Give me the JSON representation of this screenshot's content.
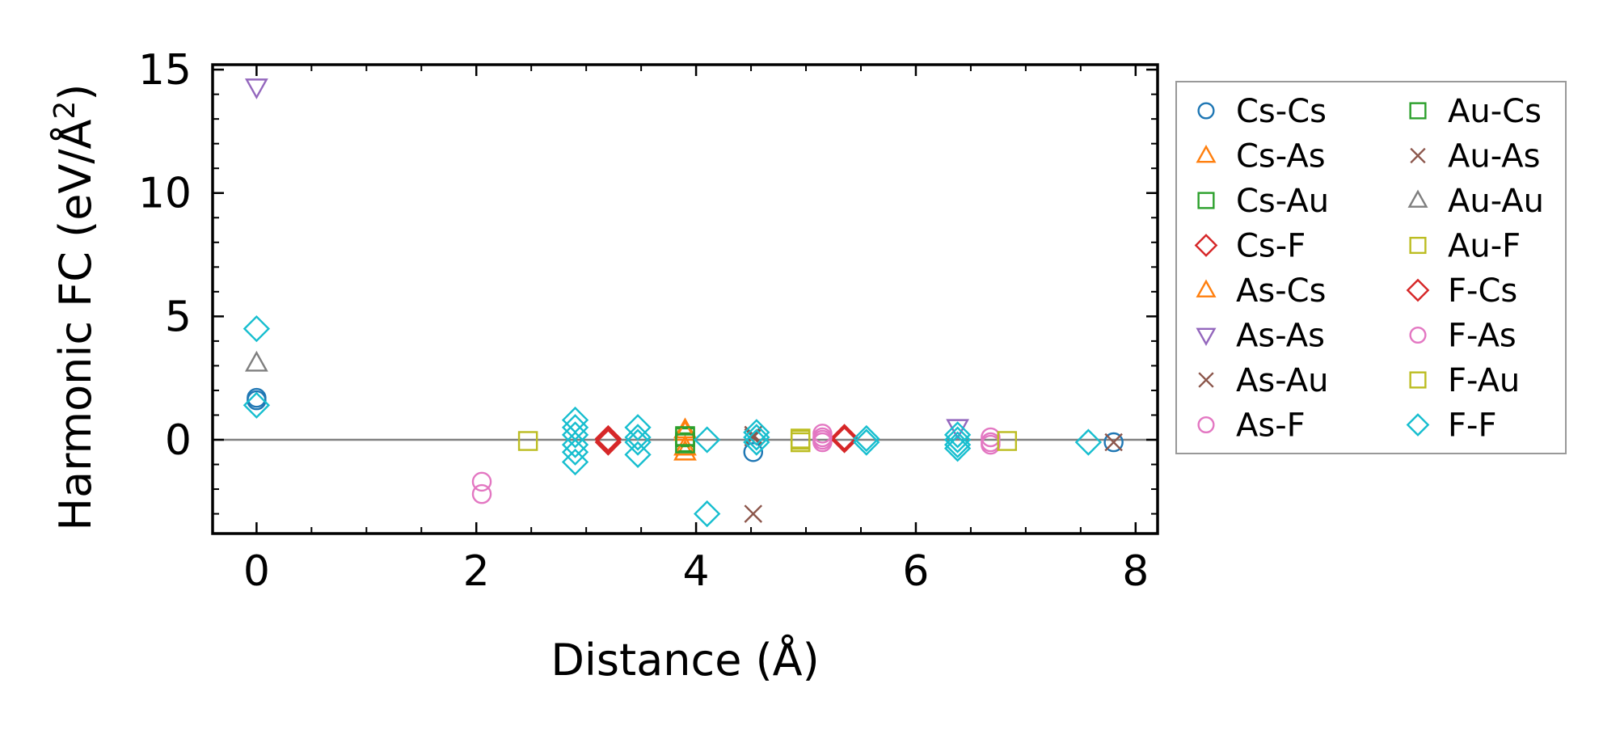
{
  "chart_data": {
    "type": "scatter",
    "title": "",
    "xlabel": "Distance (Å)",
    "ylabel": "Harmonic FC (eV/Å²)",
    "ylabel_parts": {
      "base": "Harmonic FC (eV/Å",
      "sup": "2",
      "end": ")"
    },
    "xlim": [
      -0.4,
      8.2
    ],
    "ylim": [
      -3.8,
      15.2
    ],
    "xticks": [
      0,
      2,
      4,
      6,
      8
    ],
    "xtick_labels": [
      "0",
      "2",
      "4",
      "6",
      "8"
    ],
    "yticks": [
      0,
      5,
      10,
      15
    ],
    "ytick_labels": [
      "0",
      "5",
      "10",
      "15"
    ],
    "grid": false,
    "zero_line": true,
    "legend_position": "outside-right",
    "series": [
      {
        "name": "Cs-Cs",
        "color": "#1f77b4",
        "marker": "circle",
        "points": [
          [
            0,
            1.7
          ],
          [
            0,
            1.6
          ],
          [
            4.52,
            -0.5
          ],
          [
            7.8,
            -0.1
          ]
        ]
      },
      {
        "name": "Cs-As",
        "color": "#ff7f0e",
        "marker": "triangle-up",
        "points": [
          [
            3.9,
            0.4
          ],
          [
            3.9,
            -0.5
          ]
        ]
      },
      {
        "name": "Cs-Au",
        "color": "#2ca02c",
        "marker": "square",
        "points": [
          [
            3.9,
            0.1
          ],
          [
            3.9,
            -0.1
          ]
        ]
      },
      {
        "name": "Cs-F",
        "color": "#d62728",
        "marker": "diamond",
        "points": [
          [
            3.2,
            0.05
          ],
          [
            3.2,
            -0.1
          ],
          [
            5.35,
            0.05
          ],
          [
            5.35,
            0.1
          ]
        ]
      },
      {
        "name": "As-Cs",
        "color": "#ff7f0e",
        "marker": "triangle-up",
        "points": [
          [
            3.9,
            0.3
          ],
          [
            3.9,
            -0.3
          ]
        ]
      },
      {
        "name": "As-As",
        "color": "#9467bd",
        "marker": "triangle-down",
        "points": [
          [
            0,
            14.3
          ],
          [
            6.38,
            0.5
          ]
        ]
      },
      {
        "name": "As-Au",
        "color": "#8c564b",
        "marker": "x",
        "points": [
          [
            4.52,
            -3.0
          ],
          [
            4.52,
            0.1
          ],
          [
            7.8,
            -0.1
          ]
        ]
      },
      {
        "name": "As-F",
        "color": "#e377c2",
        "marker": "circle",
        "points": [
          [
            2.05,
            -1.7
          ],
          [
            2.05,
            -2.2
          ],
          [
            5.15,
            0.25
          ],
          [
            5.15,
            0.0
          ],
          [
            5.15,
            -0.1
          ],
          [
            6.68,
            0.1
          ],
          [
            6.68,
            -0.2
          ]
        ]
      },
      {
        "name": "Au-Cs",
        "color": "#2ca02c",
        "marker": "square",
        "points": [
          [
            3.9,
            0.15
          ],
          [
            3.9,
            -0.15
          ]
        ]
      },
      {
        "name": "Au-As",
        "color": "#8c564b",
        "marker": "x",
        "points": [
          [
            4.52,
            0.2
          ]
        ]
      },
      {
        "name": "Au-Au",
        "color": "#7f7f7f",
        "marker": "triangle-up",
        "points": [
          [
            0,
            3.1
          ]
        ]
      },
      {
        "name": "Au-F",
        "color": "#bcbd22",
        "marker": "square",
        "points": [
          [
            2.47,
            -0.05
          ],
          [
            4.95,
            0.0
          ],
          [
            4.95,
            -0.1
          ]
        ]
      },
      {
        "name": "F-Cs",
        "color": "#d62728",
        "marker": "diamond",
        "points": [
          [
            3.2,
            0.0
          ],
          [
            5.35,
            0.0
          ]
        ]
      },
      {
        "name": "F-As",
        "color": "#e377c2",
        "marker": "circle",
        "points": [
          [
            5.15,
            0.1
          ],
          [
            6.68,
            -0.1
          ]
        ]
      },
      {
        "name": "F-Au",
        "color": "#bcbd22",
        "marker": "square",
        "points": [
          [
            4.95,
            0.05
          ],
          [
            6.83,
            -0.05
          ]
        ]
      },
      {
        "name": "F-F",
        "color": "#17becf",
        "marker": "diamond",
        "points": [
          [
            0,
            4.5
          ],
          [
            0,
            1.4
          ],
          [
            2.9,
            0.8
          ],
          [
            2.9,
            0.5
          ],
          [
            2.9,
            0.2
          ],
          [
            2.9,
            -0.2
          ],
          [
            2.9,
            -0.5
          ],
          [
            2.9,
            -0.9
          ],
          [
            3.47,
            0.5
          ],
          [
            3.47,
            0.1
          ],
          [
            3.47,
            -0.1
          ],
          [
            3.47,
            -0.6
          ],
          [
            4.1,
            0.0
          ],
          [
            4.1,
            -3.0
          ],
          [
            4.55,
            0.3
          ],
          [
            4.55,
            0.1
          ],
          [
            4.55,
            -0.1
          ],
          [
            5.55,
            0.05
          ],
          [
            5.55,
            -0.1
          ],
          [
            6.38,
            0.2
          ],
          [
            6.38,
            0.0
          ],
          [
            6.38,
            -0.2
          ],
          [
            6.38,
            -0.35
          ],
          [
            7.57,
            -0.1
          ]
        ]
      }
    ]
  }
}
